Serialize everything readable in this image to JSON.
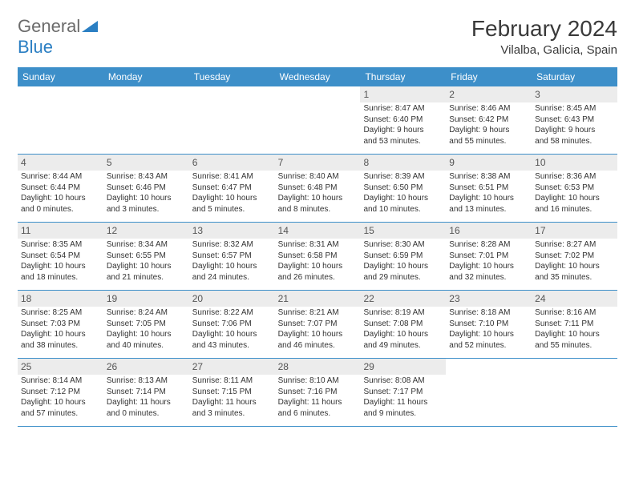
{
  "brand": {
    "name1": "General",
    "name2": "Blue"
  },
  "title": "February 2024",
  "location": "Vilalba, Galicia, Spain",
  "colors": {
    "header_bg": "#3d8fc9",
    "header_text": "#ffffff",
    "daynum_bg": "#ececec",
    "border": "#3d8fc9",
    "text": "#333333",
    "brand_gray": "#6b6b6b",
    "brand_blue": "#2b7fc3"
  },
  "dayHeaders": [
    "Sunday",
    "Monday",
    "Tuesday",
    "Wednesday",
    "Thursday",
    "Friday",
    "Saturday"
  ],
  "weeks": [
    [
      null,
      null,
      null,
      null,
      {
        "n": "1",
        "sr": "Sunrise: 8:47 AM",
        "ss": "Sunset: 6:40 PM",
        "d1": "Daylight: 9 hours",
        "d2": "and 53 minutes."
      },
      {
        "n": "2",
        "sr": "Sunrise: 8:46 AM",
        "ss": "Sunset: 6:42 PM",
        "d1": "Daylight: 9 hours",
        "d2": "and 55 minutes."
      },
      {
        "n": "3",
        "sr": "Sunrise: 8:45 AM",
        "ss": "Sunset: 6:43 PM",
        "d1": "Daylight: 9 hours",
        "d2": "and 58 minutes."
      }
    ],
    [
      {
        "n": "4",
        "sr": "Sunrise: 8:44 AM",
        "ss": "Sunset: 6:44 PM",
        "d1": "Daylight: 10 hours",
        "d2": "and 0 minutes."
      },
      {
        "n": "5",
        "sr": "Sunrise: 8:43 AM",
        "ss": "Sunset: 6:46 PM",
        "d1": "Daylight: 10 hours",
        "d2": "and 3 minutes."
      },
      {
        "n": "6",
        "sr": "Sunrise: 8:41 AM",
        "ss": "Sunset: 6:47 PM",
        "d1": "Daylight: 10 hours",
        "d2": "and 5 minutes."
      },
      {
        "n": "7",
        "sr": "Sunrise: 8:40 AM",
        "ss": "Sunset: 6:48 PM",
        "d1": "Daylight: 10 hours",
        "d2": "and 8 minutes."
      },
      {
        "n": "8",
        "sr": "Sunrise: 8:39 AM",
        "ss": "Sunset: 6:50 PM",
        "d1": "Daylight: 10 hours",
        "d2": "and 10 minutes."
      },
      {
        "n": "9",
        "sr": "Sunrise: 8:38 AM",
        "ss": "Sunset: 6:51 PM",
        "d1": "Daylight: 10 hours",
        "d2": "and 13 minutes."
      },
      {
        "n": "10",
        "sr": "Sunrise: 8:36 AM",
        "ss": "Sunset: 6:53 PM",
        "d1": "Daylight: 10 hours",
        "d2": "and 16 minutes."
      }
    ],
    [
      {
        "n": "11",
        "sr": "Sunrise: 8:35 AM",
        "ss": "Sunset: 6:54 PM",
        "d1": "Daylight: 10 hours",
        "d2": "and 18 minutes."
      },
      {
        "n": "12",
        "sr": "Sunrise: 8:34 AM",
        "ss": "Sunset: 6:55 PM",
        "d1": "Daylight: 10 hours",
        "d2": "and 21 minutes."
      },
      {
        "n": "13",
        "sr": "Sunrise: 8:32 AM",
        "ss": "Sunset: 6:57 PM",
        "d1": "Daylight: 10 hours",
        "d2": "and 24 minutes."
      },
      {
        "n": "14",
        "sr": "Sunrise: 8:31 AM",
        "ss": "Sunset: 6:58 PM",
        "d1": "Daylight: 10 hours",
        "d2": "and 26 minutes."
      },
      {
        "n": "15",
        "sr": "Sunrise: 8:30 AM",
        "ss": "Sunset: 6:59 PM",
        "d1": "Daylight: 10 hours",
        "d2": "and 29 minutes."
      },
      {
        "n": "16",
        "sr": "Sunrise: 8:28 AM",
        "ss": "Sunset: 7:01 PM",
        "d1": "Daylight: 10 hours",
        "d2": "and 32 minutes."
      },
      {
        "n": "17",
        "sr": "Sunrise: 8:27 AM",
        "ss": "Sunset: 7:02 PM",
        "d1": "Daylight: 10 hours",
        "d2": "and 35 minutes."
      }
    ],
    [
      {
        "n": "18",
        "sr": "Sunrise: 8:25 AM",
        "ss": "Sunset: 7:03 PM",
        "d1": "Daylight: 10 hours",
        "d2": "and 38 minutes."
      },
      {
        "n": "19",
        "sr": "Sunrise: 8:24 AM",
        "ss": "Sunset: 7:05 PM",
        "d1": "Daylight: 10 hours",
        "d2": "and 40 minutes."
      },
      {
        "n": "20",
        "sr": "Sunrise: 8:22 AM",
        "ss": "Sunset: 7:06 PM",
        "d1": "Daylight: 10 hours",
        "d2": "and 43 minutes."
      },
      {
        "n": "21",
        "sr": "Sunrise: 8:21 AM",
        "ss": "Sunset: 7:07 PM",
        "d1": "Daylight: 10 hours",
        "d2": "and 46 minutes."
      },
      {
        "n": "22",
        "sr": "Sunrise: 8:19 AM",
        "ss": "Sunset: 7:08 PM",
        "d1": "Daylight: 10 hours",
        "d2": "and 49 minutes."
      },
      {
        "n": "23",
        "sr": "Sunrise: 8:18 AM",
        "ss": "Sunset: 7:10 PM",
        "d1": "Daylight: 10 hours",
        "d2": "and 52 minutes."
      },
      {
        "n": "24",
        "sr": "Sunrise: 8:16 AM",
        "ss": "Sunset: 7:11 PM",
        "d1": "Daylight: 10 hours",
        "d2": "and 55 minutes."
      }
    ],
    [
      {
        "n": "25",
        "sr": "Sunrise: 8:14 AM",
        "ss": "Sunset: 7:12 PM",
        "d1": "Daylight: 10 hours",
        "d2": "and 57 minutes."
      },
      {
        "n": "26",
        "sr": "Sunrise: 8:13 AM",
        "ss": "Sunset: 7:14 PM",
        "d1": "Daylight: 11 hours",
        "d2": "and 0 minutes."
      },
      {
        "n": "27",
        "sr": "Sunrise: 8:11 AM",
        "ss": "Sunset: 7:15 PM",
        "d1": "Daylight: 11 hours",
        "d2": "and 3 minutes."
      },
      {
        "n": "28",
        "sr": "Sunrise: 8:10 AM",
        "ss": "Sunset: 7:16 PM",
        "d1": "Daylight: 11 hours",
        "d2": "and 6 minutes."
      },
      {
        "n": "29",
        "sr": "Sunrise: 8:08 AM",
        "ss": "Sunset: 7:17 PM",
        "d1": "Daylight: 11 hours",
        "d2": "and 9 minutes."
      },
      null,
      null
    ]
  ]
}
